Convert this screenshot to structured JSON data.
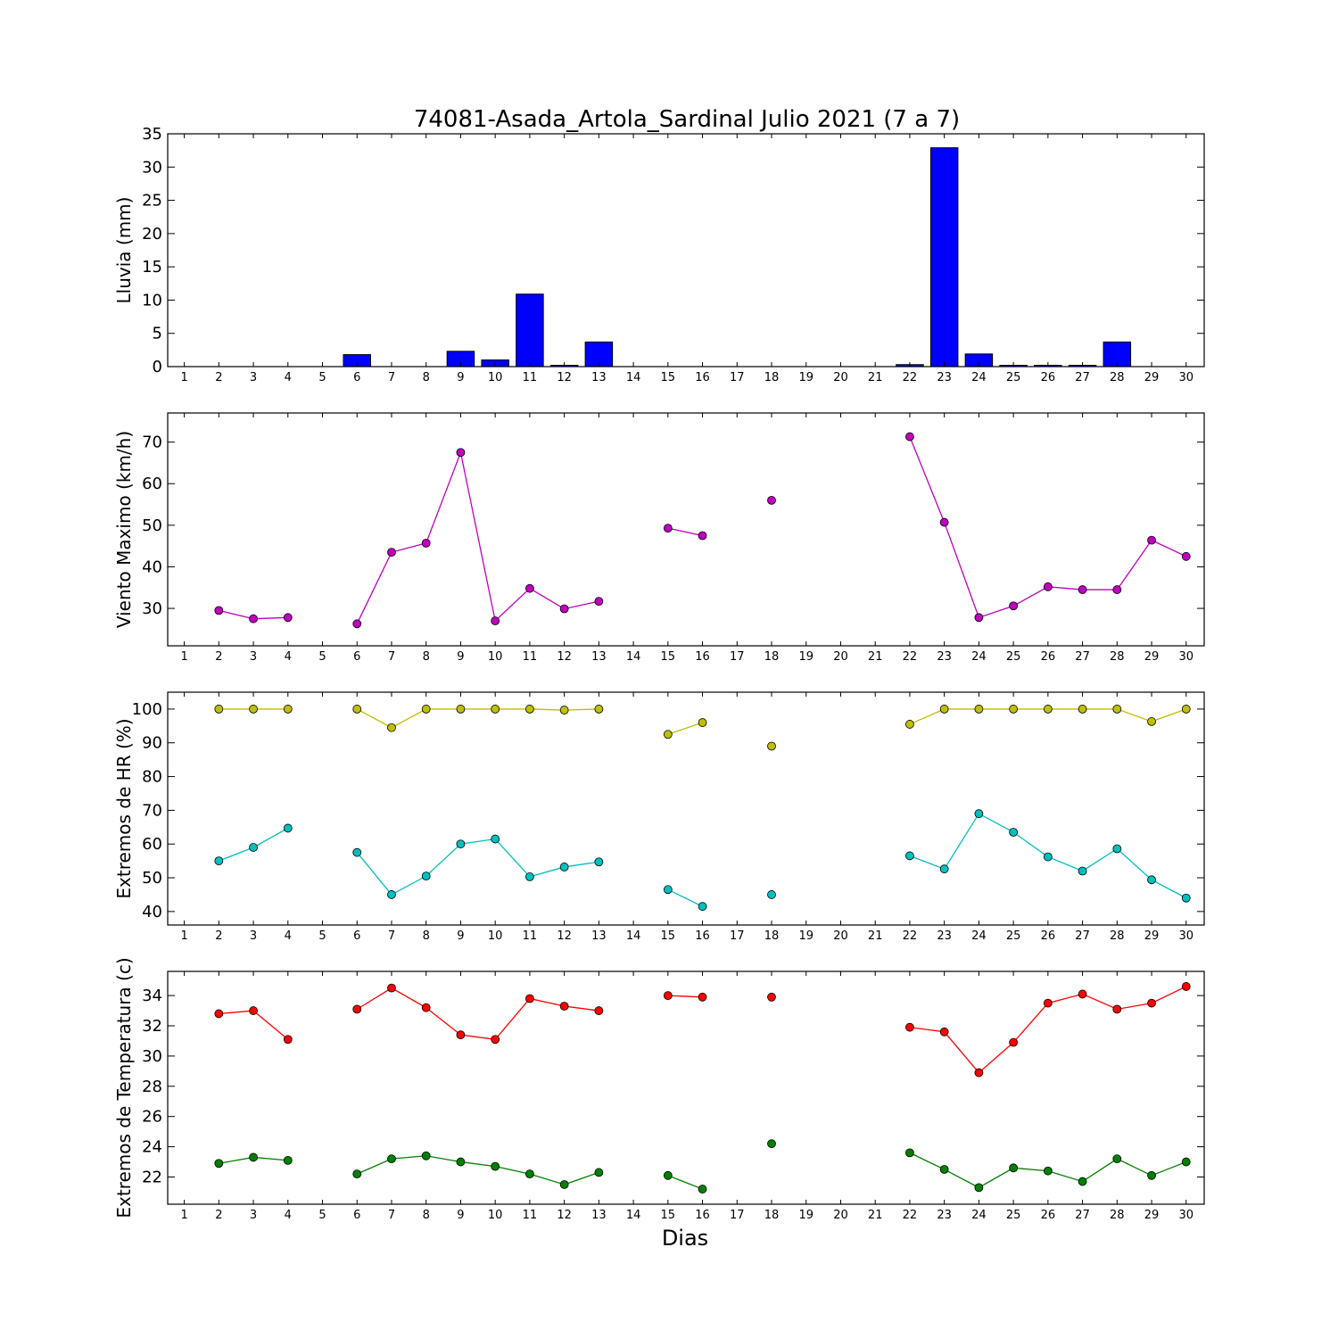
{
  "title": "74081-Asada_Artola_Sardinal Julio 2021  (7 a 7)",
  "xlabel": "Dias",
  "days": [
    1,
    2,
    3,
    4,
    5,
    6,
    7,
    8,
    9,
    10,
    11,
    12,
    13,
    14,
    15,
    16,
    17,
    18,
    19,
    20,
    21,
    22,
    23,
    24,
    25,
    26,
    27,
    28,
    29,
    30
  ],
  "chart_data": [
    {
      "type": "bar",
      "ylabel": "Lluvia (mm)",
      "ylim": [
        0,
        35
      ],
      "yticks": [
        0,
        5,
        10,
        15,
        20,
        25,
        30,
        35
      ],
      "x": [
        1,
        2,
        3,
        4,
        5,
        6,
        7,
        8,
        9,
        10,
        11,
        12,
        13,
        14,
        15,
        16,
        17,
        18,
        19,
        20,
        21,
        22,
        23,
        24,
        25,
        26,
        27,
        28,
        29,
        30
      ],
      "values": [
        0,
        0,
        0,
        0,
        0,
        1.8,
        0,
        0,
        2.3,
        1.0,
        10.9,
        0.2,
        3.7,
        0,
        0,
        0,
        0,
        0,
        0,
        0,
        0,
        0.3,
        32.9,
        1.9,
        0.2,
        0.2,
        0.2,
        3.7,
        0,
        0
      ],
      "color": "#0000ff",
      "grid": false
    },
    {
      "type": "line",
      "ylabel": "Viento Maximo (km/h)",
      "ylim": [
        21,
        77
      ],
      "yticks": [
        30,
        40,
        50,
        60,
        70
      ],
      "series": [
        {
          "color": "#bf00bf",
          "values": [
            null,
            29.5,
            27.5,
            27.8,
            null,
            26.3,
            43.5,
            45.7,
            67.5,
            27.0,
            34.8,
            29.9,
            31.7,
            null,
            49.3,
            47.5,
            null,
            56.0,
            null,
            null,
            null,
            71.3,
            50.7,
            27.8,
            30.6,
            35.2,
            34.5,
            34.5,
            46.4,
            42.5
          ]
        }
      ],
      "grid": false
    },
    {
      "type": "line",
      "ylabel": "Extremos de HR (%)",
      "ylim": [
        36,
        105
      ],
      "yticks": [
        40,
        50,
        60,
        70,
        80,
        90,
        100
      ],
      "series": [
        {
          "color": "#bfbf00",
          "values": [
            null,
            100,
            100,
            100,
            null,
            100,
            94.5,
            100,
            100,
            100,
            100,
            99.7,
            100,
            null,
            92.5,
            96,
            null,
            89,
            null,
            null,
            null,
            95.5,
            100,
            100,
            100,
            100,
            100,
            100,
            96.3,
            100
          ]
        },
        {
          "color": "#00bfbf",
          "values": [
            null,
            55,
            59,
            64.7,
            null,
            57.5,
            45,
            50.5,
            60,
            61.5,
            50.3,
            53.2,
            54.7,
            null,
            46.5,
            41.5,
            null,
            45,
            null,
            null,
            null,
            56.5,
            52.6,
            69,
            63.5,
            56.2,
            52,
            58.6,
            49.4,
            44
          ]
        }
      ],
      "grid": false
    },
    {
      "type": "line",
      "ylabel": "Extremos de Temperatura (c)",
      "ylim": [
        20.2,
        35.6
      ],
      "yticks": [
        22,
        24,
        26,
        28,
        30,
        32,
        34
      ],
      "series": [
        {
          "color": "#ff0000",
          "values": [
            null,
            32.8,
            33.0,
            31.1,
            null,
            33.1,
            34.5,
            33.2,
            31.4,
            31.1,
            33.8,
            33.3,
            33.0,
            null,
            34.0,
            33.9,
            null,
            33.9,
            null,
            null,
            null,
            31.9,
            31.6,
            28.9,
            30.9,
            33.5,
            34.1,
            33.1,
            33.5,
            34.6
          ]
        },
        {
          "color": "#008000",
          "values": [
            null,
            22.9,
            23.3,
            23.1,
            null,
            22.2,
            23.2,
            23.4,
            23.0,
            22.7,
            22.2,
            21.5,
            22.3,
            null,
            22.1,
            21.2,
            null,
            24.2,
            null,
            null,
            null,
            23.6,
            22.5,
            21.3,
            22.6,
            22.4,
            21.7,
            23.2,
            22.1,
            23.0
          ]
        }
      ],
      "grid": false
    }
  ]
}
